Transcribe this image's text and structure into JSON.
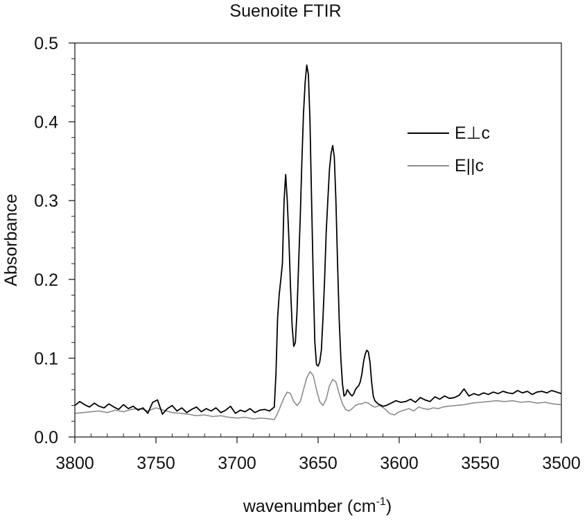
{
  "chart_data": {
    "type": "line",
    "title": "Suenoite FTIR",
    "xlabel": {
      "base": "wavenumber (cm",
      "sup": "-1",
      "tail": ")"
    },
    "ylabel": "Absorbance",
    "xlim": [
      3800,
      3500
    ],
    "ylim": [
      0.0,
      0.5
    ],
    "x_reversed": true,
    "xticks": [
      3800,
      3750,
      3700,
      3650,
      3600,
      3550,
      3500
    ],
    "xtick_labels": [
      "3800",
      "3750",
      "3700",
      "3650",
      "3600",
      "3550",
      "3500"
    ],
    "yticks": [
      0.0,
      0.1,
      0.2,
      0.3,
      0.4,
      0.5
    ],
    "ytick_labels": [
      "0.0",
      "0.1",
      "0.2",
      "0.3",
      "0.4",
      "0.5"
    ],
    "minor_xtick_step": 10,
    "minor_ytick_step": 0.02,
    "grid": false,
    "legend": {
      "position": "upper-right"
    },
    "series": [
      {
        "name": "E⊥c",
        "color": "#000000",
        "x": [
          3800,
          3797,
          3794,
          3791,
          3788,
          3785,
          3782,
          3779,
          3776,
          3773,
          3770,
          3767,
          3764,
          3761,
          3758,
          3755,
          3752,
          3749,
          3746,
          3743,
          3740,
          3737,
          3734,
          3731,
          3728,
          3725,
          3722,
          3719,
          3716,
          3713,
          3710,
          3707,
          3704,
          3701,
          3698,
          3695,
          3692,
          3689,
          3686,
          3683,
          3680,
          3677,
          3676,
          3675,
          3674,
          3673,
          3672,
          3671,
          3670,
          3669,
          3668,
          3667,
          3666,
          3665,
          3664,
          3663,
          3662,
          3661,
          3660,
          3659,
          3658,
          3657,
          3656,
          3655,
          3654,
          3653,
          3652,
          3651,
          3650,
          3649,
          3648,
          3647,
          3646,
          3645,
          3644,
          3643,
          3642,
          3641,
          3640,
          3639,
          3638,
          3637,
          3636,
          3635,
          3634,
          3633,
          3632,
          3631,
          3630,
          3629,
          3628,
          3627,
          3626,
          3625,
          3624,
          3623,
          3622,
          3621,
          3620,
          3619,
          3618,
          3617,
          3616,
          3615,
          3614,
          3613,
          3612,
          3611,
          3610,
          3608,
          3605,
          3602,
          3599,
          3596,
          3593,
          3590,
          3587,
          3584,
          3581,
          3578,
          3575,
          3572,
          3569,
          3566,
          3563,
          3560,
          3557,
          3554,
          3551,
          3548,
          3545,
          3542,
          3539,
          3536,
          3533,
          3530,
          3527,
          3524,
          3521,
          3518,
          3515,
          3512,
          3509,
          3506,
          3503,
          3500
        ],
        "y": [
          0.04,
          0.045,
          0.041,
          0.038,
          0.043,
          0.039,
          0.037,
          0.042,
          0.038,
          0.035,
          0.041,
          0.036,
          0.039,
          0.034,
          0.037,
          0.03,
          0.044,
          0.047,
          0.029,
          0.036,
          0.04,
          0.033,
          0.037,
          0.031,
          0.035,
          0.038,
          0.032,
          0.036,
          0.033,
          0.037,
          0.031,
          0.034,
          0.039,
          0.03,
          0.034,
          0.032,
          0.036,
          0.031,
          0.034,
          0.035,
          0.033,
          0.038,
          0.08,
          0.15,
          0.18,
          0.2,
          0.22,
          0.3,
          0.333,
          0.3,
          0.25,
          0.19,
          0.14,
          0.115,
          0.12,
          0.16,
          0.22,
          0.28,
          0.35,
          0.41,
          0.45,
          0.472,
          0.46,
          0.4,
          0.3,
          0.2,
          0.12,
          0.092,
          0.09,
          0.095,
          0.11,
          0.15,
          0.2,
          0.26,
          0.3,
          0.34,
          0.36,
          0.37,
          0.355,
          0.3,
          0.22,
          0.15,
          0.1,
          0.068,
          0.052,
          0.054,
          0.06,
          0.057,
          0.054,
          0.052,
          0.055,
          0.06,
          0.063,
          0.065,
          0.07,
          0.08,
          0.095,
          0.105,
          0.11,
          0.108,
          0.095,
          0.07,
          0.052,
          0.046,
          0.044,
          0.042,
          0.041,
          0.04,
          0.039,
          0.04,
          0.043,
          0.046,
          0.044,
          0.045,
          0.048,
          0.044,
          0.05,
          0.047,
          0.045,
          0.051,
          0.048,
          0.052,
          0.049,
          0.05,
          0.053,
          0.061,
          0.052,
          0.055,
          0.053,
          0.056,
          0.054,
          0.057,
          0.055,
          0.058,
          0.056,
          0.055,
          0.059,
          0.056,
          0.058,
          0.054,
          0.057,
          0.058,
          0.056,
          0.059,
          0.057,
          0.055
        ]
      },
      {
        "name": "E||c",
        "color": "#8c8c8c",
        "x": [
          3800,
          3795,
          3790,
          3785,
          3780,
          3775,
          3770,
          3765,
          3760,
          3755,
          3750,
          3745,
          3740,
          3735,
          3730,
          3725,
          3720,
          3715,
          3710,
          3705,
          3700,
          3695,
          3690,
          3685,
          3680,
          3677,
          3675,
          3673,
          3671,
          3669,
          3667,
          3665,
          3663,
          3661,
          3659,
          3657,
          3655,
          3653,
          3651,
          3649,
          3647,
          3645,
          3643,
          3641,
          3639,
          3637,
          3635,
          3633,
          3631,
          3629,
          3627,
          3625,
          3623,
          3621,
          3619,
          3617,
          3615,
          3612,
          3609,
          3606,
          3603,
          3600,
          3597,
          3594,
          3591,
          3588,
          3585,
          3582,
          3579,
          3576,
          3573,
          3570,
          3565,
          3560,
          3555,
          3550,
          3545,
          3540,
          3535,
          3530,
          3525,
          3520,
          3515,
          3510,
          3505,
          3500
        ],
        "y": [
          0.03,
          0.031,
          0.032,
          0.033,
          0.031,
          0.034,
          0.032,
          0.035,
          0.036,
          0.033,
          0.037,
          0.034,
          0.031,
          0.03,
          0.029,
          0.027,
          0.028,
          0.026,
          0.027,
          0.025,
          0.024,
          0.025,
          0.023,
          0.024,
          0.023,
          0.022,
          0.03,
          0.04,
          0.05,
          0.057,
          0.055,
          0.045,
          0.04,
          0.045,
          0.06,
          0.075,
          0.083,
          0.078,
          0.06,
          0.045,
          0.04,
          0.048,
          0.065,
          0.073,
          0.07,
          0.055,
          0.042,
          0.035,
          0.033,
          0.036,
          0.04,
          0.042,
          0.042,
          0.044,
          0.043,
          0.04,
          0.038,
          0.04,
          0.036,
          0.03,
          0.028,
          0.032,
          0.034,
          0.036,
          0.033,
          0.038,
          0.036,
          0.035,
          0.037,
          0.036,
          0.038,
          0.039,
          0.04,
          0.041,
          0.043,
          0.044,
          0.045,
          0.046,
          0.045,
          0.046,
          0.044,
          0.045,
          0.043,
          0.044,
          0.042,
          0.041
        ]
      }
    ]
  }
}
